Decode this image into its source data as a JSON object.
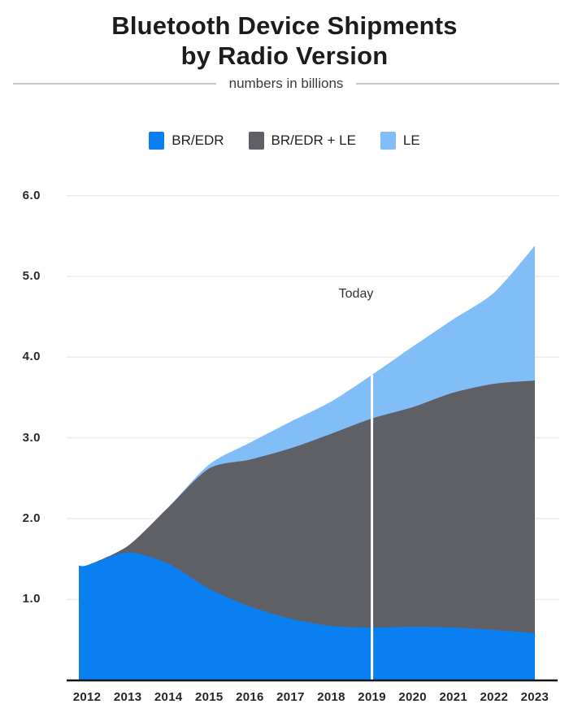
{
  "header": {
    "title_line1": "Bluetooth Device Shipments",
    "title_line2": "by Radio Version",
    "subtitle": "numbers in billions"
  },
  "legend": {
    "items": [
      {
        "label": "BR/EDR",
        "color": "#0a7ff2"
      },
      {
        "label": "BR/EDR + LE",
        "color": "#5e6066"
      },
      {
        "label": "LE",
        "color": "#81bdf7"
      }
    ]
  },
  "annotation": {
    "today_label": "Today",
    "today_year": "2019"
  },
  "colors": {
    "axis": "#161616",
    "gridline": "#ececec",
    "today_line": "#ffffff",
    "divider": "#c7c7c7"
  },
  "chart_data": {
    "type": "area",
    "stacked": true,
    "title": "Bluetooth Device Shipments by Radio Version",
    "subtitle": "numbers in billions",
    "unit": "billions of devices",
    "categories": [
      "2012",
      "2013",
      "2014",
      "2015",
      "2016",
      "2017",
      "2018",
      "2019",
      "2020",
      "2021",
      "2022",
      "2023"
    ],
    "series": [
      {
        "name": "BR/EDR",
        "color": "#0a7ff2",
        "values": [
          1.42,
          1.58,
          1.44,
          1.13,
          0.91,
          0.76,
          0.67,
          0.65,
          0.66,
          0.65,
          0.62,
          0.58
        ]
      },
      {
        "name": "BR/EDR + LE",
        "color": "#5e6066",
        "values": [
          0,
          0.08,
          0.7,
          1.49,
          1.82,
          2.11,
          2.38,
          2.59,
          2.72,
          2.91,
          3.05,
          3.13
        ]
      },
      {
        "name": "LE",
        "color": "#81bdf7",
        "values": [
          0,
          0,
          0,
          0.05,
          0.21,
          0.33,
          0.4,
          0.54,
          0.75,
          0.91,
          1.13,
          1.67
        ]
      }
    ],
    "totals": [
      1.42,
      1.66,
      2.14,
      2.67,
      2.94,
      3.2,
      3.45,
      3.78,
      4.13,
      4.47,
      4.8,
      5.38
    ],
    "ylim": [
      0,
      6.2
    ],
    "yticks": [
      1,
      2,
      3,
      4,
      5,
      6
    ],
    "ytick_labels": [
      "1.0",
      "2.0",
      "3.0",
      "4.0",
      "5.0",
      "6.0"
    ],
    "grid": true,
    "legend_position": "top",
    "annotation_line_x": "2019"
  }
}
